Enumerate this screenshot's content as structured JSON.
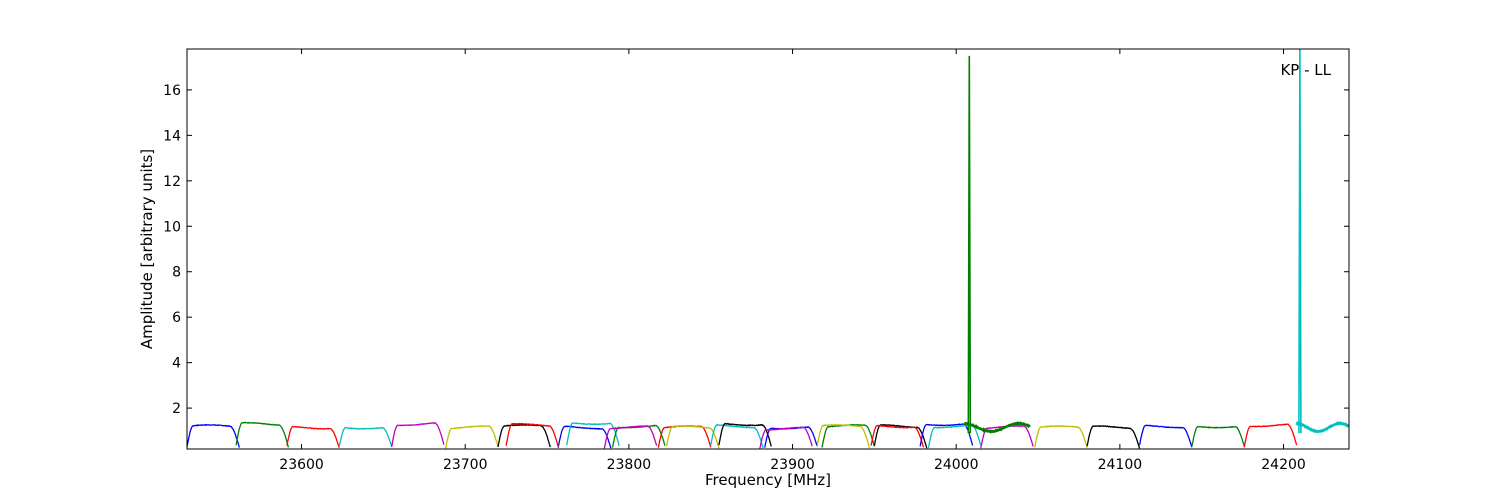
{
  "chart_data": {
    "type": "line",
    "title": "",
    "xlabel": "Frequency [MHz]",
    "ylabel": "Amplitude [arbitrary units]",
    "annotation": "KP - LL",
    "xlim": [
      23530,
      24240
    ],
    "ylim": [
      0.2,
      17.8
    ],
    "xticks": [
      23600,
      23700,
      23800,
      23900,
      24000,
      24100,
      24200
    ],
    "yticks": [
      2,
      4,
      6,
      8,
      10,
      12,
      14,
      16
    ],
    "grid": false,
    "legend": "none",
    "band_width_mhz": 32,
    "series": [
      {
        "color": "#0000ff",
        "x": [
          23530,
          23562
        ],
        "peak": 1.2
      },
      {
        "color": "#008000",
        "x": [
          23560,
          23592
        ],
        "peak": 1.3
      },
      {
        "color": "#ff0000",
        "x": [
          23591,
          23623
        ],
        "peak": 1.15
      },
      {
        "color": "#00bfbf",
        "x": [
          23623,
          23655
        ],
        "peak": 1.15
      },
      {
        "color": "#bf00bf",
        "x": [
          23655,
          23687
        ],
        "peak": 1.3
      },
      {
        "color": "#bfbf00",
        "x": [
          23688,
          23720
        ],
        "peak": 1.15
      },
      {
        "color": "#000000",
        "x": [
          23720,
          23752
        ],
        "peak": 1.2
      },
      {
        "color": "#ff0000",
        "x": [
          23725,
          23757
        ],
        "peak": 1.25
      },
      {
        "color": "#0000ff",
        "x": [
          23757,
          23789
        ],
        "peak": 1.15
      },
      {
        "color": "#00bfbf",
        "x": [
          23762,
          23794
        ],
        "peak": 1.35
      },
      {
        "color": "#008000",
        "x": [
          23790,
          23822
        ],
        "peak": 1.2
      },
      {
        "color": "#bf00bf",
        "x": [
          23785,
          23817
        ],
        "peak": 1.15
      },
      {
        "color": "#ff0000",
        "x": [
          23818,
          23850
        ],
        "peak": 1.15
      },
      {
        "color": "#bfbf00",
        "x": [
          23823,
          23855
        ],
        "peak": 1.15
      },
      {
        "color": "#00bfbf",
        "x": [
          23850,
          23882
        ],
        "peak": 1.2
      },
      {
        "color": "#000000",
        "x": [
          23855,
          23887
        ],
        "peak": 1.3
      },
      {
        "color": "#0000ff",
        "x": [
          23883,
          23915
        ],
        "peak": 1.15
      },
      {
        "color": "#bf00bf",
        "x": [
          23880,
          23912
        ],
        "peak": 1.1
      },
      {
        "color": "#008000",
        "x": [
          23918,
          23950
        ],
        "peak": 1.2
      },
      {
        "color": "#bfbf00",
        "x": [
          23915,
          23947
        ],
        "peak": 1.2
      },
      {
        "color": "#000000",
        "x": [
          23950,
          23982
        ],
        "peak": 1.2
      },
      {
        "color": "#ff0000",
        "x": [
          23948,
          23980
        ],
        "peak": 1.2
      },
      {
        "color": "#0000ff",
        "x": [
          23978,
          24010
        ],
        "peak": 1.3
      },
      {
        "color": "#00bfbf",
        "x": [
          23983,
          24015
        ],
        "peak": 1.2
      },
      {
        "color": "#bf00bf",
        "x": [
          24015,
          24047
        ],
        "peak": 1.15
      },
      {
        "color": "#bfbf00",
        "x": [
          24048,
          24080
        ],
        "peak": 1.15
      },
      {
        "color": "#000000",
        "x": [
          24080,
          24112
        ],
        "peak": 1.15
      },
      {
        "color": "#0000ff",
        "x": [
          24112,
          24144
        ],
        "peak": 1.2
      },
      {
        "color": "#008000",
        "x": [
          24144,
          24176
        ],
        "peak": 1.2
      },
      {
        "color": "#ff0000",
        "x": [
          24176,
          24208
        ],
        "peak": 1.25
      }
    ],
    "ripple_series": [
      {
        "color": "#008000",
        "x": [
          24005,
          24045
        ],
        "peak": 1.45
      },
      {
        "color": "#00bfbf",
        "x": [
          24208,
          24240
        ],
        "peak": 1.45
      }
    ],
    "spikes": [
      {
        "color": "#008000",
        "x": 24008,
        "y": 17.5
      },
      {
        "color": "#00bfbf",
        "x": 24210,
        "y": 17.8
      }
    ]
  }
}
